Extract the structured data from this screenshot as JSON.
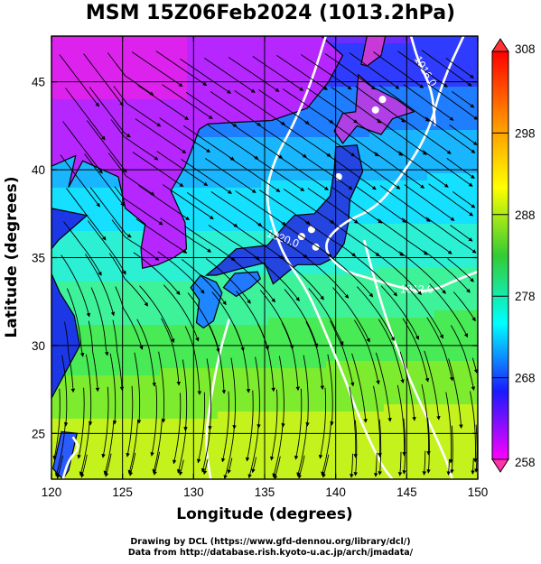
{
  "title": "MSM 15Z06Feb2024 (1013.2hPa)",
  "credits": {
    "line1": "Drawing by DCL (https://www.gfd-dennou.org/library/dcl/)",
    "line2": "Data from http://database.rish.kyoto-u.ac.jp/arch/jmadata/"
  },
  "chart_data": {
    "type": "heatmap",
    "variable_shading": "temperature",
    "xlabel": "Longitude (degrees)",
    "ylabel": "Latitude  (degrees)",
    "xlim": [
      120,
      150
    ],
    "ylim": [
      22.4,
      47.6
    ],
    "x_ticks": [
      120,
      125,
      130,
      135,
      140,
      145,
      150
    ],
    "y_ticks": [
      25,
      30,
      35,
      40,
      45
    ],
    "grid": true,
    "colorbar": {
      "min": 258,
      "max": 308,
      "tick_values": [
        258,
        268,
        278,
        288,
        298,
        308
      ],
      "colors": [
        "#ff00ff",
        "#1a1aff",
        "#00ffff",
        "#33cc33",
        "#ffff00",
        "#ff8c00",
        "#ff0000"
      ]
    },
    "isobars": [
      {
        "label": "1020.0",
        "value": 1020.0,
        "label_pos": [
          136.2,
          35.9
        ]
      },
      {
        "label": "1012.0",
        "value": 1012.0,
        "label_pos": [
          145.7,
          33.0
        ]
      },
      {
        "label": "1016.0",
        "value": 1016.0,
        "label_pos": [
          146.1,
          45.5
        ]
      }
    ],
    "flow_field": "streamlines (surface wind)"
  }
}
